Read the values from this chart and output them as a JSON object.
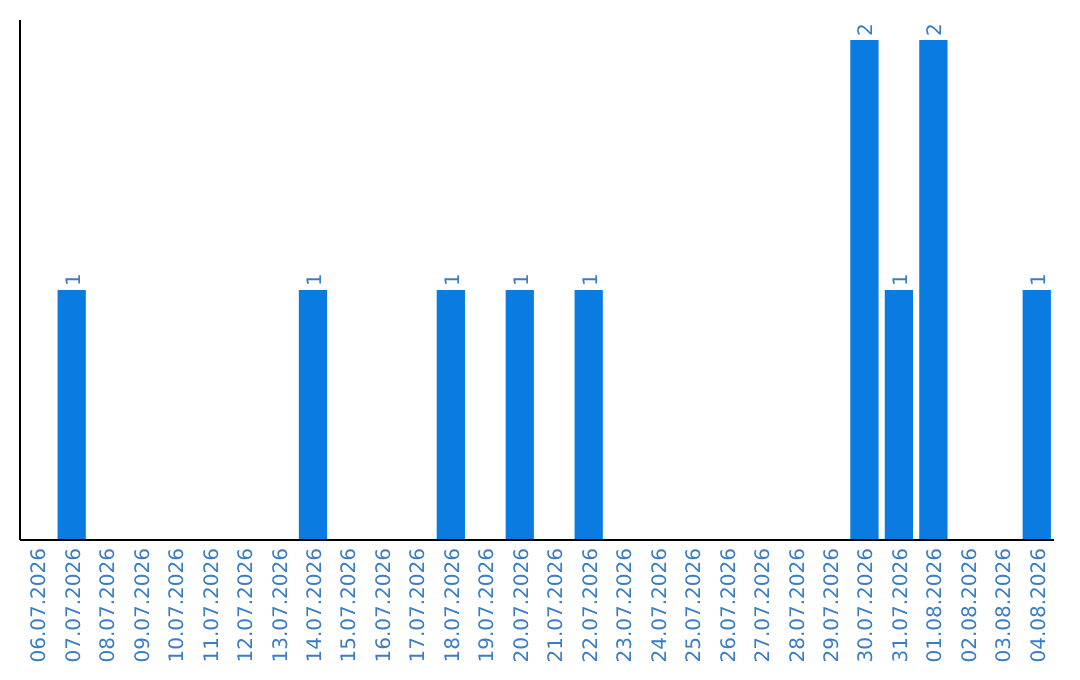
{
  "chart_data": {
    "type": "bar",
    "categories": [
      "06.07.2026",
      "07.07.2026",
      "08.07.2026",
      "09.07.2026",
      "10.07.2026",
      "11.07.2026",
      "12.07.2026",
      "13.07.2026",
      "14.07.2026",
      "15.07.2026",
      "16.07.2026",
      "17.07.2026",
      "18.07.2026",
      "19.07.2026",
      "20.07.2026",
      "21.07.2026",
      "22.07.2026",
      "23.07.2026",
      "24.07.2026",
      "25.07.2026",
      "26.07.2026",
      "27.07.2026",
      "28.07.2026",
      "29.07.2026",
      "30.07.2026",
      "31.07.2026",
      "01.08.2026",
      "02.08.2026",
      "03.08.2026",
      "04.08.2026"
    ],
    "values": [
      0,
      1,
      0,
      0,
      0,
      0,
      0,
      0,
      1,
      0,
      0,
      0,
      1,
      0,
      1,
      0,
      1,
      0,
      0,
      0,
      0,
      0,
      0,
      0,
      2,
      1,
      2,
      0,
      0,
      1
    ],
    "value_labels": [
      null,
      "1",
      null,
      null,
      null,
      null,
      null,
      null,
      "1",
      null,
      null,
      null,
      "1",
      null,
      "1",
      null,
      "1",
      null,
      null,
      null,
      null,
      null,
      null,
      null,
      "2",
      "1",
      "2",
      null,
      null,
      "1"
    ],
    "color": "#0a7be0",
    "ylim": [
      0,
      2.08
    ],
    "tick_labels": "x"
  }
}
